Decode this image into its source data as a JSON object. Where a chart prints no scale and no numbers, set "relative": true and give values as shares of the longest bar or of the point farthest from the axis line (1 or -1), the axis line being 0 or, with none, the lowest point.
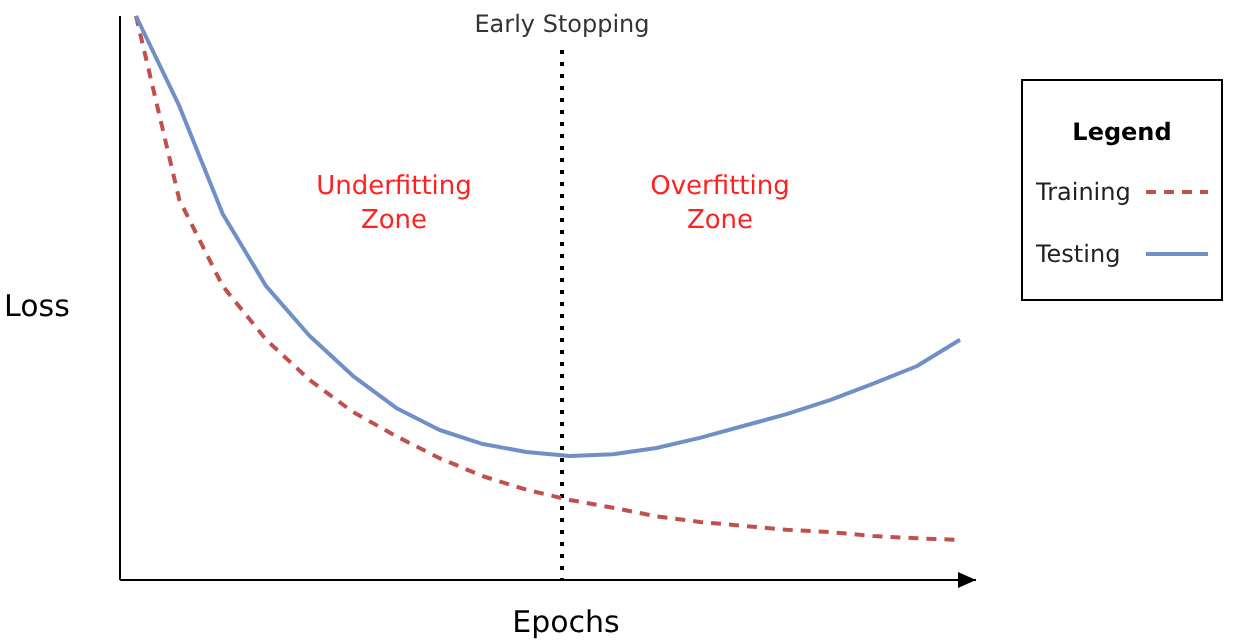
{
  "chart_data": {
    "type": "line",
    "relative": true,
    "xlabel": "Epochs",
    "ylabel": "Loss",
    "legend_title": "Legend",
    "legend": "right",
    "categories": [
      null,
      null,
      null,
      null,
      null,
      null,
      null,
      null,
      null,
      null,
      null,
      null,
      null,
      null,
      null,
      null,
      null,
      null,
      null,
      null
    ],
    "annotations": [
      "Underfitting Zone",
      "Overfitting Zone",
      "Early Stopping"
    ],
    "series": [
      {
        "name": "Training",
        "color": "#c0504d",
        "line_style": "dashed",
        "values": [
          1.0,
          0.674,
          0.521,
          0.426,
          0.355,
          0.298,
          0.255,
          0.216,
          0.184,
          0.16,
          0.142,
          0.128,
          0.113,
          0.103,
          0.096,
          0.089,
          0.085,
          0.078,
          0.074,
          0.071
        ]
      },
      {
        "name": "Testing",
        "color": "#6f8fc6",
        "line_style": "solid",
        "values": [
          1.0,
          0.84,
          0.649,
          0.521,
          0.433,
          0.362,
          0.305,
          0.266,
          0.241,
          0.227,
          0.22,
          0.223,
          0.234,
          0.252,
          0.273,
          0.294,
          0.319,
          0.348,
          0.379,
          0.426
        ]
      }
    ]
  }
}
